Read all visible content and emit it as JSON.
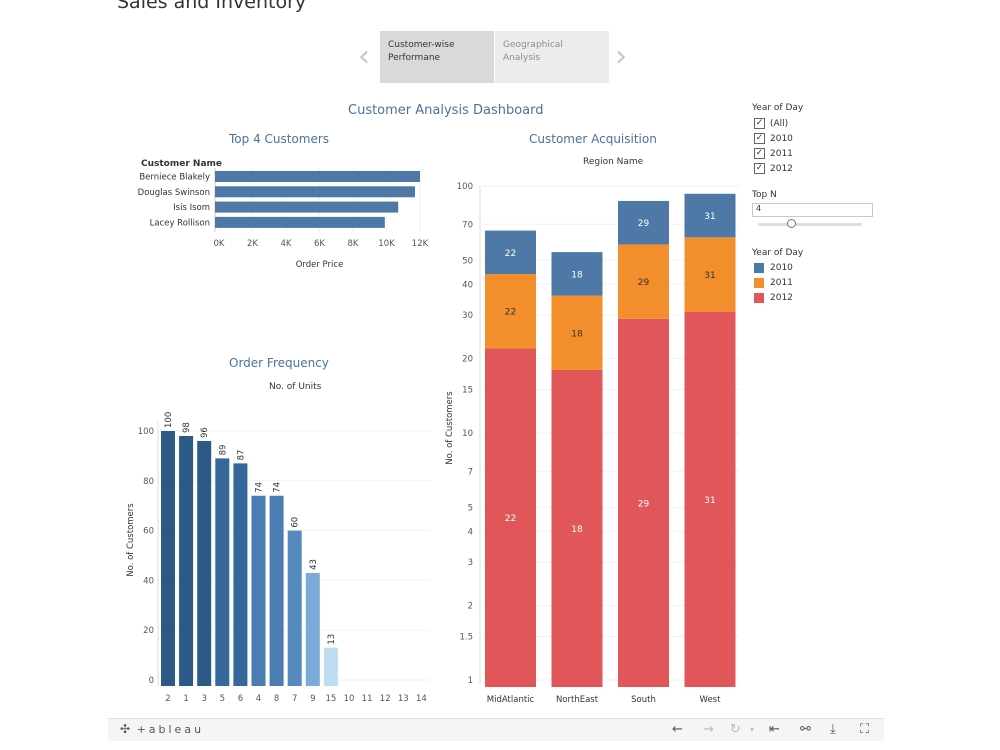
{
  "page": {
    "title": "Sales and Inventory"
  },
  "story_tabs": [
    {
      "label": "Customer-wise Performane"
    },
    {
      "label": "Geographical Analysis"
    }
  ],
  "dashboard_title": "Customer Analysis Dashboard",
  "filters": {
    "year_label": "Year of Day",
    "years": [
      {
        "label": "(All)",
        "checked": true
      },
      {
        "label": "2010",
        "checked": true
      },
      {
        "label": "2011",
        "checked": true
      },
      {
        "label": "2012",
        "checked": true
      }
    ],
    "topn_label": "Top N",
    "topn_value": "4",
    "legend_title": "Year of Day",
    "legend": [
      {
        "label": "2010",
        "color": "#4e79a7"
      },
      {
        "label": "2011",
        "color": "#f28e2b"
      },
      {
        "label": "2012",
        "color": "#e15759"
      }
    ]
  },
  "toolbar": {
    "logo": "+ableau"
  },
  "chart_data": [
    {
      "type": "bar",
      "orientation": "horizontal",
      "title": "Top 4 Customers",
      "category_header": "Customer Name",
      "categories": [
        "Berniece Blakely",
        "Douglas Swinson",
        "Isis Isom",
        "Lacey Rollison"
      ],
      "values": [
        12000,
        11700,
        10700,
        9900
      ],
      "xlabel": "Order Price",
      "xlim": [
        0,
        12000
      ],
      "xticks": [
        "0K",
        "2K",
        "4K",
        "6K",
        "8K",
        "10K",
        "12K"
      ],
      "color": "#4e79a7"
    },
    {
      "type": "bar",
      "stacked": true,
      "title": "Customer Acquisition",
      "subtitle": "Region Name",
      "categories": [
        "MidAtlantic",
        "NorthEast",
        "South",
        "West"
      ],
      "series": [
        {
          "name": "2012",
          "color": "#e15759",
          "values": [
            22,
            18,
            29,
            31
          ]
        },
        {
          "name": "2011",
          "color": "#f28e2b",
          "values": [
            22,
            18,
            29,
            31
          ]
        },
        {
          "name": "2010",
          "color": "#4e79a7",
          "values": [
            22,
            18,
            29,
            31
          ]
        }
      ],
      "ylabel": "No. of Customers",
      "yscale": "log",
      "yticks": [
        "1",
        "1.5",
        "2",
        "3",
        "4",
        "5",
        "7",
        "10",
        "15",
        "20",
        "30",
        "40",
        "50",
        "70",
        "100"
      ]
    },
    {
      "type": "bar",
      "title": "Order Frequency",
      "subtitle": "No. of Units",
      "categories": [
        "2",
        "1",
        "3",
        "5",
        "6",
        "4",
        "8",
        "7",
        "9",
        "15",
        "10",
        "11",
        "12",
        "13",
        "14"
      ],
      "values": [
        100,
        98,
        96,
        89,
        87,
        74,
        74,
        60,
        43,
        13,
        null,
        null,
        null,
        null,
        null
      ],
      "ylabel": "No. of Customers",
      "ylim": [
        0,
        100
      ],
      "yticks": [
        "0",
        "20",
        "40",
        "60",
        "80",
        "100"
      ],
      "colors": [
        "#2c5985",
        "#2c5985",
        "#2c5985",
        "#35679a",
        "#35679a",
        "#4a7eb3",
        "#4a7eb3",
        "#5589bd",
        "#79acd8",
        "#bfdcf1"
      ]
    }
  ]
}
